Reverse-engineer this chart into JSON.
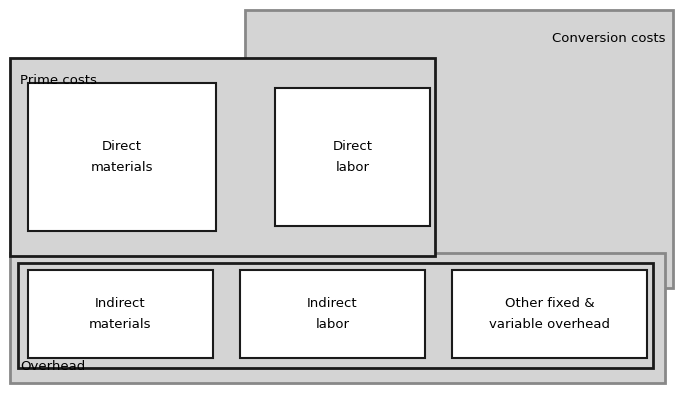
{
  "fig_width": 6.86,
  "fig_height": 4.03,
  "dpi": 100,
  "bg_color": "#ffffff",
  "light_gray": "#d4d4d4",
  "dark_border": "#1a1a1a",
  "gray_border": "#888888",
  "white_box": "#ffffff",
  "conversion_costs_label": "Conversion costs",
  "prime_costs_label": "Prime costs",
  "overhead_label": "Overhead",
  "boxes": [
    {
      "label": "Direct\nmaterials"
    },
    {
      "label": "Direct\nlabor"
    },
    {
      "label": "Indirect\nmaterials"
    },
    {
      "label": "Indirect\nlabor"
    },
    {
      "label": "Other fixed &\nvariable overhead"
    }
  ],
  "font_size_labels": 9.5,
  "font_size_inner": 9.5
}
